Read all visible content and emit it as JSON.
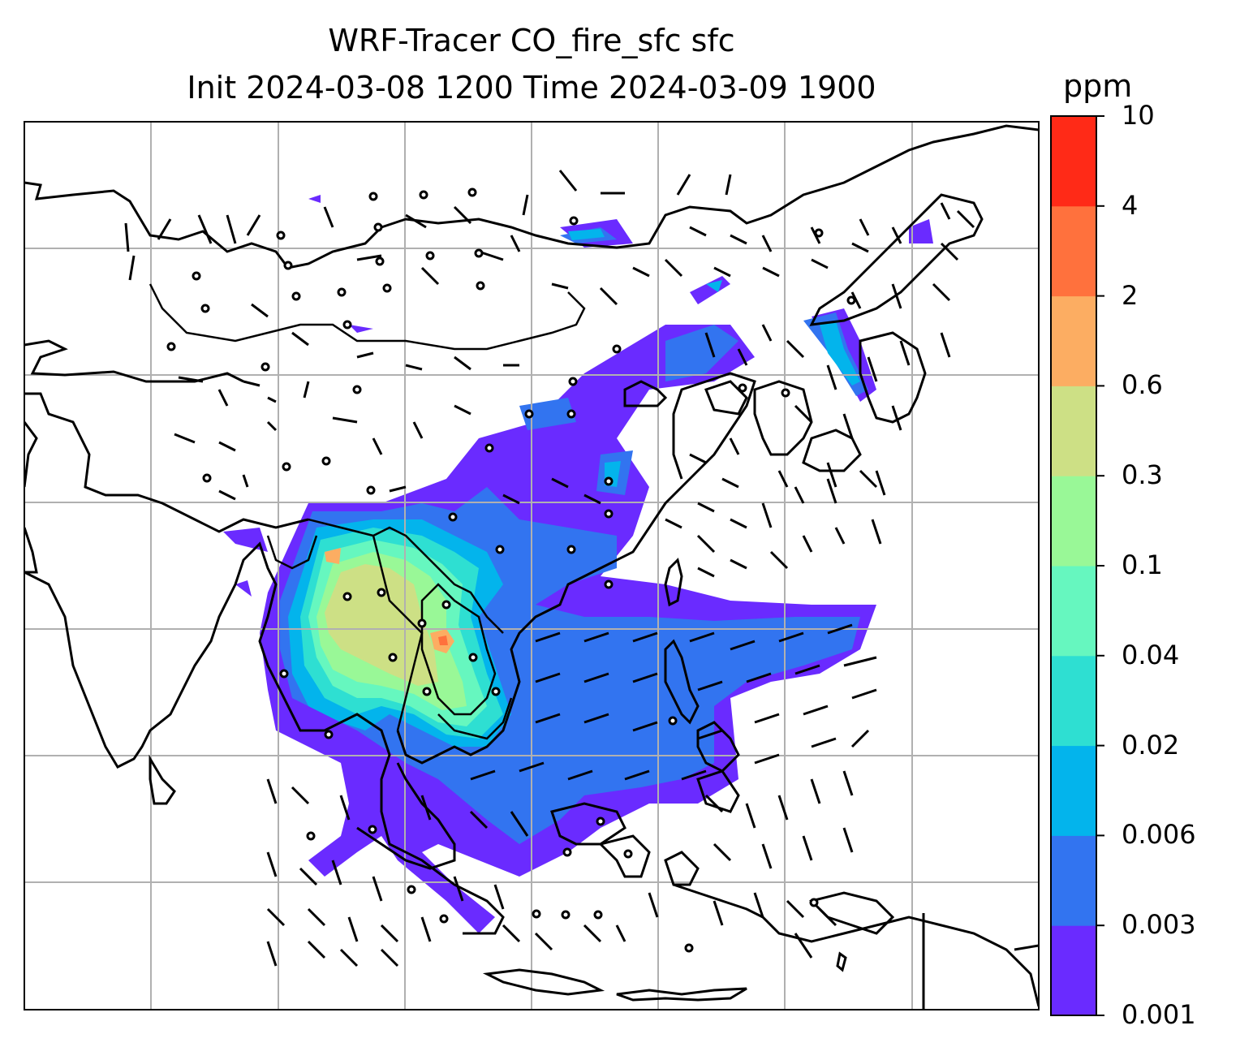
{
  "title": {
    "line1": "WRF-Tracer CO_fire_sfc sfc",
    "line2": "Init 2024-03-08 1200 Time 2024-03-09 1900"
  },
  "colorbar": {
    "unit": "ppm",
    "ticks": [
      "0.001",
      "0.003",
      "0.006",
      "0.02",
      "0.04",
      "0.1",
      "0.3",
      "0.6",
      "2",
      "4",
      "10"
    ],
    "colors": [
      "#6a2bff",
      "#3274f0",
      "#03b4ec",
      "#2edfd2",
      "#66f7bf",
      "#99f897",
      "#cde085",
      "#fcad62",
      "#ff713d",
      "#ff2a17"
    ]
  },
  "map": {
    "projection": "regional lat-lon",
    "gridlines": true,
    "coastlines": true,
    "borders": true,
    "wind_barbs": true,
    "calm_marker": "circle"
  }
}
